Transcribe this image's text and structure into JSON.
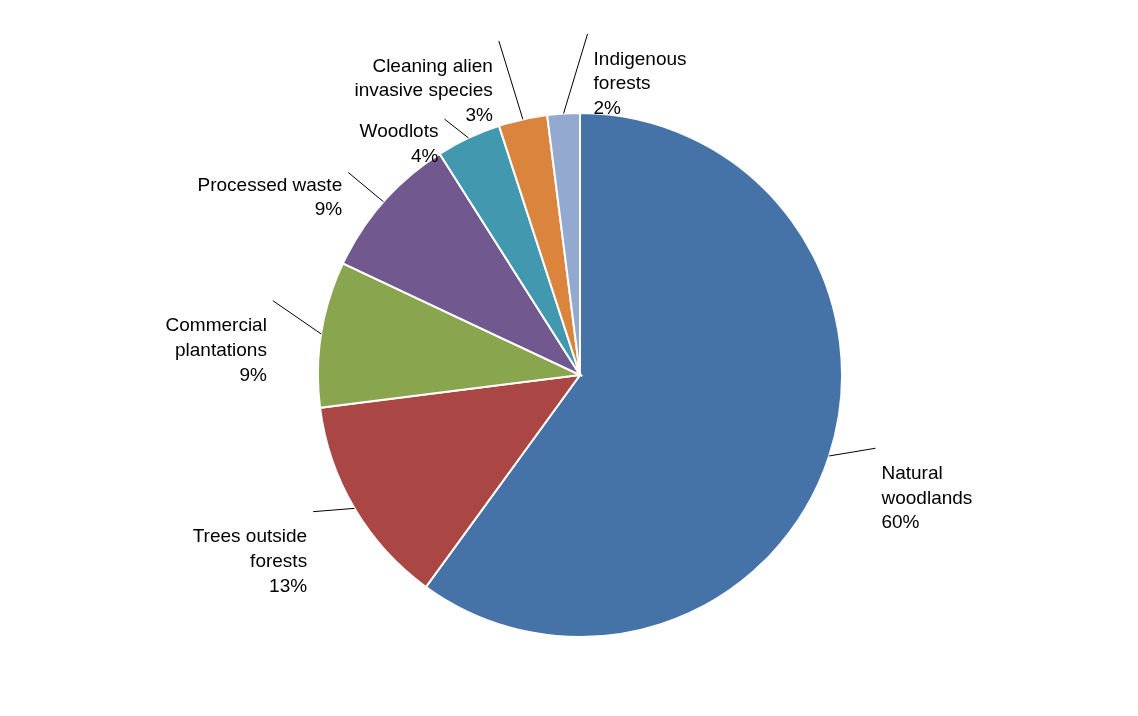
{
  "chart_data": {
    "type": "pie",
    "categories": [
      "Natural woodlands",
      "Trees outside forests",
      "Commercial plantations",
      "Processed waste",
      "Woodlots",
      "Cleaning alien invasive species",
      "Indigenous forests"
    ],
    "values": [
      60,
      13,
      9,
      9,
      4,
      3,
      2
    ],
    "value_labels": [
      "60%",
      "13%",
      "9%",
      "9%",
      "4%",
      "3%",
      "2%"
    ],
    "colors": [
      "#4572a7",
      "#aa4643",
      "#89a54e",
      "#71588f",
      "#4198af",
      "#db843d",
      "#93a9cf"
    ]
  }
}
